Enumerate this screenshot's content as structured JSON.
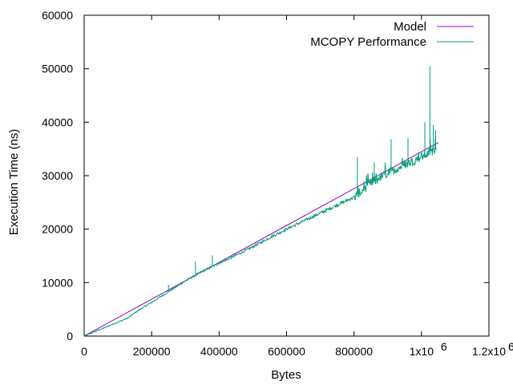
{
  "chart_data": {
    "type": "line",
    "xlabel": "Bytes",
    "ylabel": "Execution Time (ns)",
    "xlim": [
      0,
      1200000
    ],
    "ylim": [
      0,
      60000
    ],
    "x_ticks": [
      {
        "value": 0,
        "label": "0"
      },
      {
        "value": 200000,
        "label": "200000"
      },
      {
        "value": 400000,
        "label": "400000"
      },
      {
        "value": 600000,
        "label": "600000"
      },
      {
        "value": 800000,
        "label": "800000"
      },
      {
        "value": 1000000,
        "label": "1x10",
        "exp": "6"
      },
      {
        "value": 1200000,
        "label": "1.2x10",
        "exp": "6"
      }
    ],
    "y_ticks": [
      {
        "value": 0,
        "label": "0"
      },
      {
        "value": 10000,
        "label": "10000"
      },
      {
        "value": 20000,
        "label": "20000"
      },
      {
        "value": 30000,
        "label": "30000"
      },
      {
        "value": 40000,
        "label": "40000"
      },
      {
        "value": 50000,
        "label": "50000"
      },
      {
        "value": 60000,
        "label": "60000"
      }
    ],
    "legend_position": "top-right",
    "grid": false,
    "series": [
      {
        "name": "Model",
        "color": "#9400d3",
        "x": [
          0,
          1050000
        ],
        "y": [
          0,
          36200
        ]
      },
      {
        "name": "MCOPY Performance",
        "color": "#009e73",
        "x": [
          0,
          50000,
          100000,
          130000,
          160000,
          200000,
          250000,
          300000,
          350000,
          400000,
          450000,
          500000,
          550000,
          600000,
          650000,
          700000,
          750000,
          800000,
          850000,
          900000,
          950000,
          1000000,
          1030000,
          1045000
        ],
        "y": [
          0,
          1300,
          2600,
          3400,
          4800,
          6300,
          8300,
          10300,
          12100,
          13600,
          15100,
          16700,
          18400,
          20000,
          21500,
          23000,
          24500,
          26000,
          28500,
          30500,
          32000,
          33500,
          34500,
          35500
        ],
        "spikes": [
          {
            "x": 250000,
            "y": 9600
          },
          {
            "x": 330000,
            "y": 14000
          },
          {
            "x": 380000,
            "y": 15100
          },
          {
            "x": 810000,
            "y": 33500
          },
          {
            "x": 860000,
            "y": 32500
          },
          {
            "x": 910000,
            "y": 36800
          },
          {
            "x": 960000,
            "y": 37000
          },
          {
            "x": 1010000,
            "y": 40000
          },
          {
            "x": 1025000,
            "y": 50500
          },
          {
            "x": 1035000,
            "y": 39500
          },
          {
            "x": 1042000,
            "y": 38500
          }
        ]
      }
    ]
  }
}
